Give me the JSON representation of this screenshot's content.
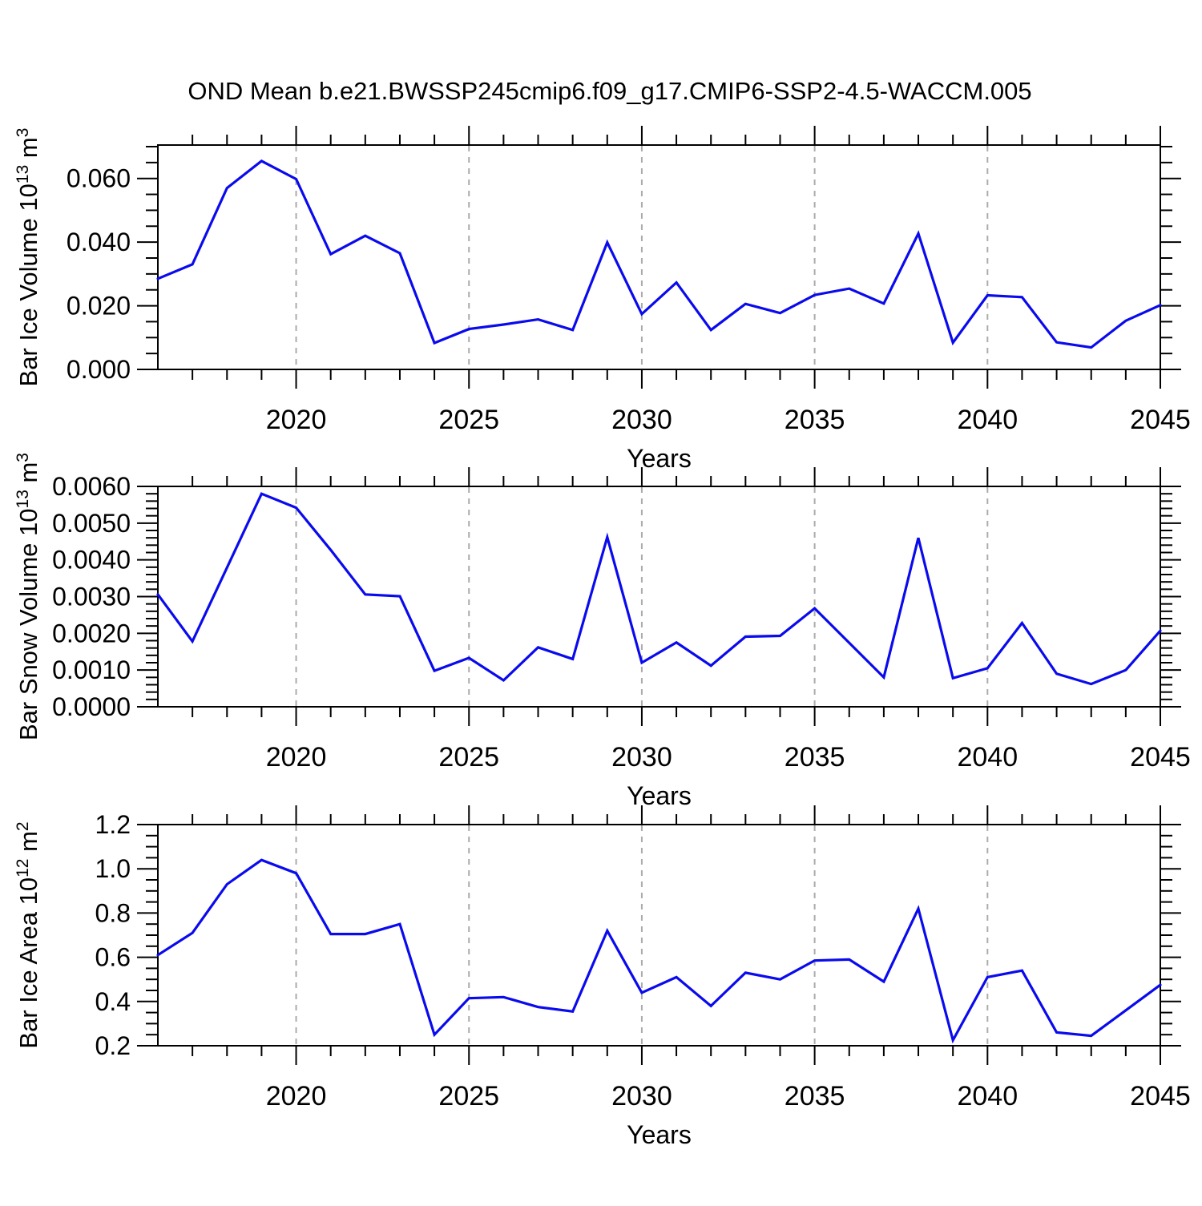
{
  "figure": {
    "title": "OND Mean b.e21.BWSSP245cmip6.f09_g17.CMIP6-SSP2-4.5-WACCM.005",
    "xlabel": "Years"
  },
  "style": {
    "line_color": "#0a0aee",
    "grid_color": "#ababab",
    "frame_color": "#000000",
    "background": "#ffffff"
  },
  "chart_data": [
    {
      "type": "line",
      "title": "Bar Ice Volume 10^13 m^3",
      "ylabel_parts": [
        {
          "text": "Bar Ice Volume 10",
          "sup": false
        },
        {
          "text": "13",
          "sup": true
        },
        {
          "text": " m",
          "sup": false
        },
        {
          "text": "3",
          "sup": true
        }
      ],
      "xlabel": "Years",
      "x": [
        2016,
        2017,
        2018,
        2019,
        2020,
        2021,
        2022,
        2023,
        2024,
        2025,
        2026,
        2027,
        2028,
        2029,
        2030,
        2031,
        2032,
        2033,
        2034,
        2035,
        2036,
        2037,
        2038,
        2039,
        2040,
        2041,
        2042,
        2043,
        2044,
        2045
      ],
      "values": [
        0.0285,
        0.033,
        0.057,
        0.0655,
        0.0598,
        0.0362,
        0.042,
        0.0365,
        0.0083,
        0.0127,
        0.0141,
        0.0157,
        0.0124,
        0.0399,
        0.0174,
        0.0273,
        0.0124,
        0.0206,
        0.0177,
        0.0234,
        0.0254,
        0.0207,
        0.0427,
        0.0084,
        0.0233,
        0.0227,
        0.0085,
        0.0069,
        0.0153,
        0.0202
      ],
      "ylim": [
        0,
        0.0705
      ],
      "ytick_major": 0.02,
      "ytick_minor": 0.005,
      "ytick_decimals": 3,
      "xlim": [
        2016,
        2045
      ],
      "xtick_major_every": 5,
      "xtick_minor_every": 1,
      "x_labeled_ticks": [
        2020,
        2025,
        2030,
        2035,
        2040,
        2045
      ],
      "gridline_years": [
        2020,
        2025,
        2030,
        2035,
        2040
      ],
      "grid": "vertical-dashed",
      "legend": "none"
    },
    {
      "type": "line",
      "title": "Bar Snow Volume 10^13 m^3",
      "ylabel_parts": [
        {
          "text": "Bar Snow Volume 10",
          "sup": false
        },
        {
          "text": "13",
          "sup": true
        },
        {
          "text": " m",
          "sup": false
        },
        {
          "text": "3",
          "sup": true
        }
      ],
      "xlabel": "Years",
      "x": [
        2016,
        2017,
        2018,
        2019,
        2020,
        2021,
        2022,
        2023,
        2024,
        2025,
        2026,
        2027,
        2028,
        2029,
        2030,
        2031,
        2032,
        2033,
        2034,
        2035,
        2036,
        2037,
        2038,
        2039,
        2040,
        2041,
        2042,
        2043,
        2044,
        2045
      ],
      "values": [
        0.00306,
        0.00178,
        0.00379,
        0.0058,
        0.00542,
        0.00427,
        0.00306,
        0.00301,
        0.00098,
        0.00133,
        0.00072,
        0.00162,
        0.0013,
        0.00462,
        0.0012,
        0.00175,
        0.00112,
        0.00191,
        0.00193,
        0.00268,
        0.00174,
        0.0008,
        0.0046,
        0.00078,
        0.00105,
        0.00228,
        0.0009,
        0.00062,
        0.001,
        0.00207
      ],
      "ylim": [
        0,
        0.006
      ],
      "ytick_major": 0.001,
      "ytick_minor": 0.0002,
      "ytick_decimals": 4,
      "xlim": [
        2016,
        2045
      ],
      "xtick_major_every": 5,
      "xtick_minor_every": 1,
      "x_labeled_ticks": [
        2020,
        2025,
        2030,
        2035,
        2040,
        2045
      ],
      "gridline_years": [
        2020,
        2025,
        2030,
        2035,
        2040
      ],
      "grid": "vertical-dashed",
      "legend": "none"
    },
    {
      "type": "line",
      "title": "Bar Ice Area 10^12 m^2",
      "ylabel_parts": [
        {
          "text": "Bar Ice Area 10",
          "sup": false
        },
        {
          "text": "12",
          "sup": true
        },
        {
          "text": " m",
          "sup": false
        },
        {
          "text": "2",
          "sup": true
        }
      ],
      "xlabel": "Years",
      "x": [
        2016,
        2017,
        2018,
        2019,
        2020,
        2021,
        2022,
        2023,
        2024,
        2025,
        2026,
        2027,
        2028,
        2029,
        2030,
        2031,
        2032,
        2033,
        2034,
        2035,
        2036,
        2037,
        2038,
        2039,
        2040,
        2041,
        2042,
        2043,
        2044,
        2045
      ],
      "values": [
        0.61,
        0.71,
        0.93,
        1.04,
        0.98,
        0.705,
        0.705,
        0.75,
        0.25,
        0.415,
        0.42,
        0.375,
        0.355,
        0.72,
        0.44,
        0.51,
        0.38,
        0.53,
        0.5,
        0.585,
        0.59,
        0.49,
        0.82,
        0.225,
        0.51,
        0.54,
        0.26,
        0.245,
        0.36,
        0.475
      ],
      "ylim": [
        0.2,
        1.2
      ],
      "ytick_major": 0.2,
      "ytick_minor": 0.05,
      "ytick_decimals": 1,
      "xlim": [
        2016,
        2045
      ],
      "xtick_major_every": 5,
      "xtick_minor_every": 1,
      "x_labeled_ticks": [
        2020,
        2025,
        2030,
        2035,
        2040,
        2045
      ],
      "gridline_years": [
        2020,
        2025,
        2030,
        2035,
        2040
      ],
      "grid": "vertical-dashed",
      "legend": "none"
    }
  ]
}
